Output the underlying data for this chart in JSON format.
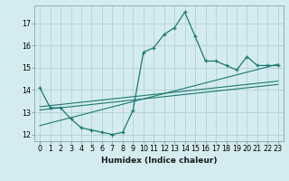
{
  "xlabel": "Humidex (Indice chaleur)",
  "bg_color": "#d4ecf0",
  "grid_color": "#b8d4d8",
  "line_color": "#1a7a6e",
  "x_data": [
    0,
    1,
    2,
    3,
    4,
    5,
    6,
    7,
    8,
    9,
    10,
    11,
    12,
    13,
    14,
    15,
    16,
    17,
    18,
    19,
    20,
    21,
    22,
    23
  ],
  "y_main": [
    14.1,
    13.2,
    13.2,
    12.7,
    12.3,
    12.2,
    12.1,
    12.0,
    12.1,
    13.1,
    15.7,
    15.9,
    16.5,
    16.8,
    17.5,
    16.4,
    15.3,
    15.3,
    15.1,
    14.9,
    15.5,
    15.1,
    15.1,
    15.1
  ],
  "y_trend1": [
    13.25,
    13.3,
    13.35,
    13.4,
    13.45,
    13.5,
    13.55,
    13.6,
    13.65,
    13.7,
    13.75,
    13.8,
    13.85,
    13.9,
    13.95,
    14.0,
    14.05,
    14.1,
    14.15,
    14.2,
    14.25,
    14.3,
    14.35,
    14.4
  ],
  "y_trend2": [
    13.1,
    13.15,
    13.2,
    13.25,
    13.3,
    13.35,
    13.4,
    13.45,
    13.5,
    13.55,
    13.6,
    13.65,
    13.7,
    13.75,
    13.8,
    13.85,
    13.9,
    13.95,
    14.0,
    14.05,
    14.1,
    14.15,
    14.2,
    14.25
  ],
  "y_trend3": [
    12.4,
    12.52,
    12.64,
    12.76,
    12.88,
    13.0,
    13.12,
    13.24,
    13.36,
    13.48,
    13.6,
    13.72,
    13.84,
    13.96,
    14.08,
    14.2,
    14.32,
    14.44,
    14.56,
    14.68,
    14.8,
    14.92,
    15.04,
    15.16
  ],
  "yticks": [
    12,
    13,
    14,
    15,
    16,
    17
  ],
  "xticks": [
    0,
    1,
    2,
    3,
    4,
    5,
    6,
    7,
    8,
    9,
    10,
    11,
    12,
    13,
    14,
    15,
    16,
    17,
    18,
    19,
    20,
    21,
    22,
    23
  ],
  "xlim": [
    -0.5,
    23.5
  ],
  "ylim": [
    11.7,
    17.8
  ],
  "xlabel_fontsize": 6.5,
  "tick_fontsize": 5.8
}
